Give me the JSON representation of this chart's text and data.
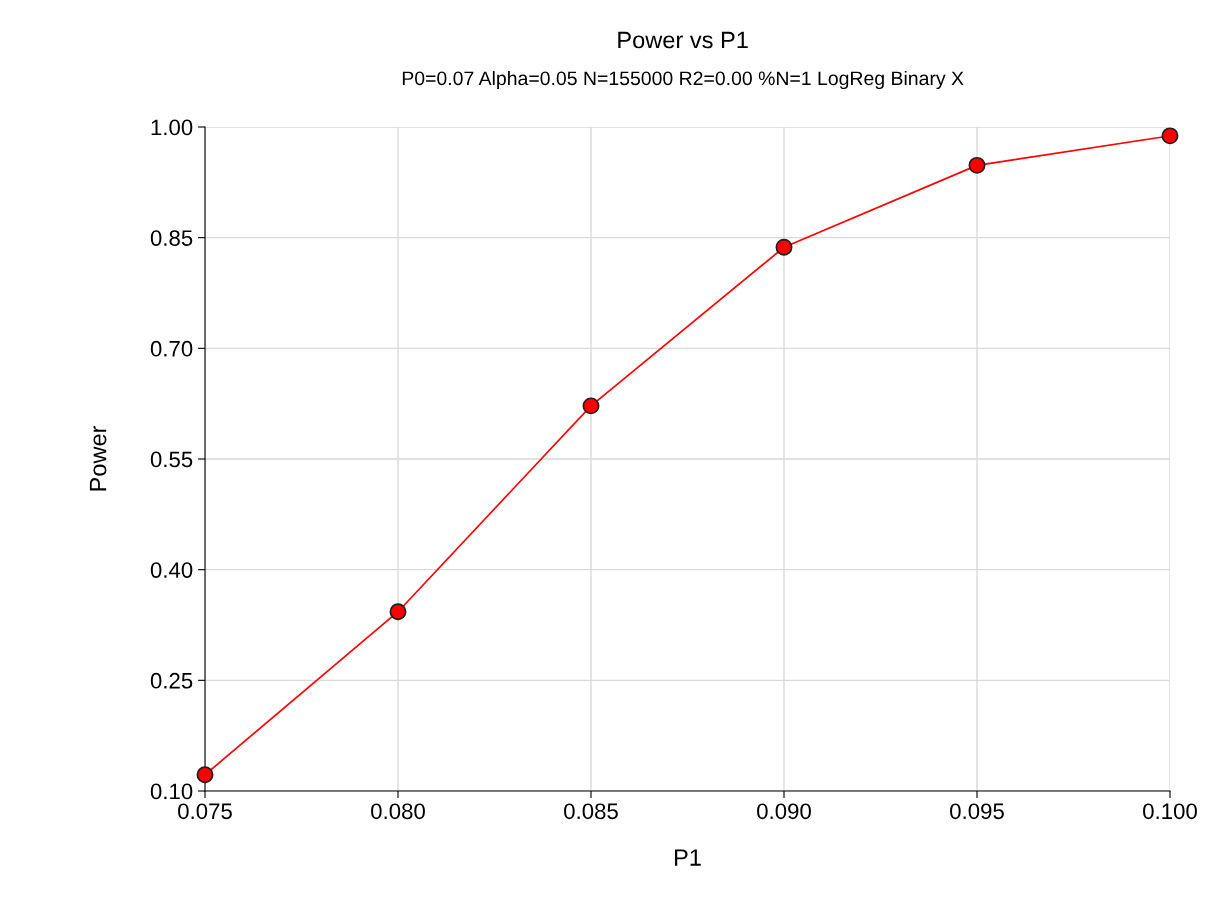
{
  "chart_data": {
    "type": "line",
    "title": "Power vs P1",
    "subtitle": "P0=0.07 Alpha=0.05 N=155000 R2=0.00 %N=1 LogReg Binary X",
    "xlabel": "P1",
    "ylabel": "Power",
    "x": [
      0.075,
      0.08,
      0.085,
      0.09,
      0.095,
      0.1
    ],
    "series": [
      {
        "color": "#ff0000",
        "values": [
          0.122,
          0.343,
          0.622,
          0.837,
          0.948,
          0.988
        ]
      }
    ],
    "xlim": [
      0.075,
      0.1
    ],
    "xticks": [
      {
        "value": 0.075,
        "label": "0.075"
      },
      {
        "value": 0.08,
        "label": "0.080"
      },
      {
        "value": 0.085,
        "label": "0.085"
      },
      {
        "value": 0.09,
        "label": "0.090"
      },
      {
        "value": 0.095,
        "label": "0.095"
      },
      {
        "value": 0.1,
        "label": "0.100"
      }
    ],
    "ylim": [
      0.1,
      1.0
    ],
    "yticks": [
      {
        "value": 0.1,
        "label": "0.10"
      },
      {
        "value": 0.25,
        "label": "0.25"
      },
      {
        "value": 0.4,
        "label": "0.40"
      },
      {
        "value": 0.55,
        "label": "0.55"
      },
      {
        "value": 0.7,
        "label": "0.70"
      },
      {
        "value": 0.85,
        "label": "0.85"
      },
      {
        "value": 1.0,
        "label": "1.00"
      }
    ],
    "grid": true,
    "marker": "circle",
    "line_style": "solid"
  }
}
